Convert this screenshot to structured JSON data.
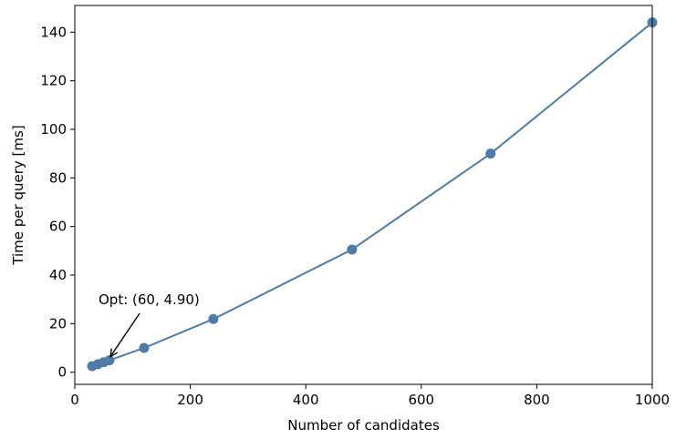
{
  "chart_data": {
    "type": "line",
    "xlabel": "Number of candidates",
    "ylabel": "Time per query [ms]",
    "xlim": [
      0,
      1000
    ],
    "ylim": [
      -5,
      151
    ],
    "xticks": [
      0,
      200,
      400,
      600,
      800,
      1000
    ],
    "yticks": [
      0,
      20,
      40,
      60,
      80,
      100,
      120,
      140
    ],
    "grid": false,
    "color": "#4e7ca8",
    "series": [
      {
        "x": [
          30,
          40,
          50,
          60,
          120,
          240,
          480,
          720,
          1000
        ],
        "y": [
          2.5,
          3.3,
          4.1,
          4.9,
          10.0,
          21.9,
          50.5,
          90.0,
          144.0
        ]
      }
    ],
    "annotation": {
      "text": "Opt: (60, 4.90)",
      "point": [
        60,
        4.9
      ]
    }
  }
}
